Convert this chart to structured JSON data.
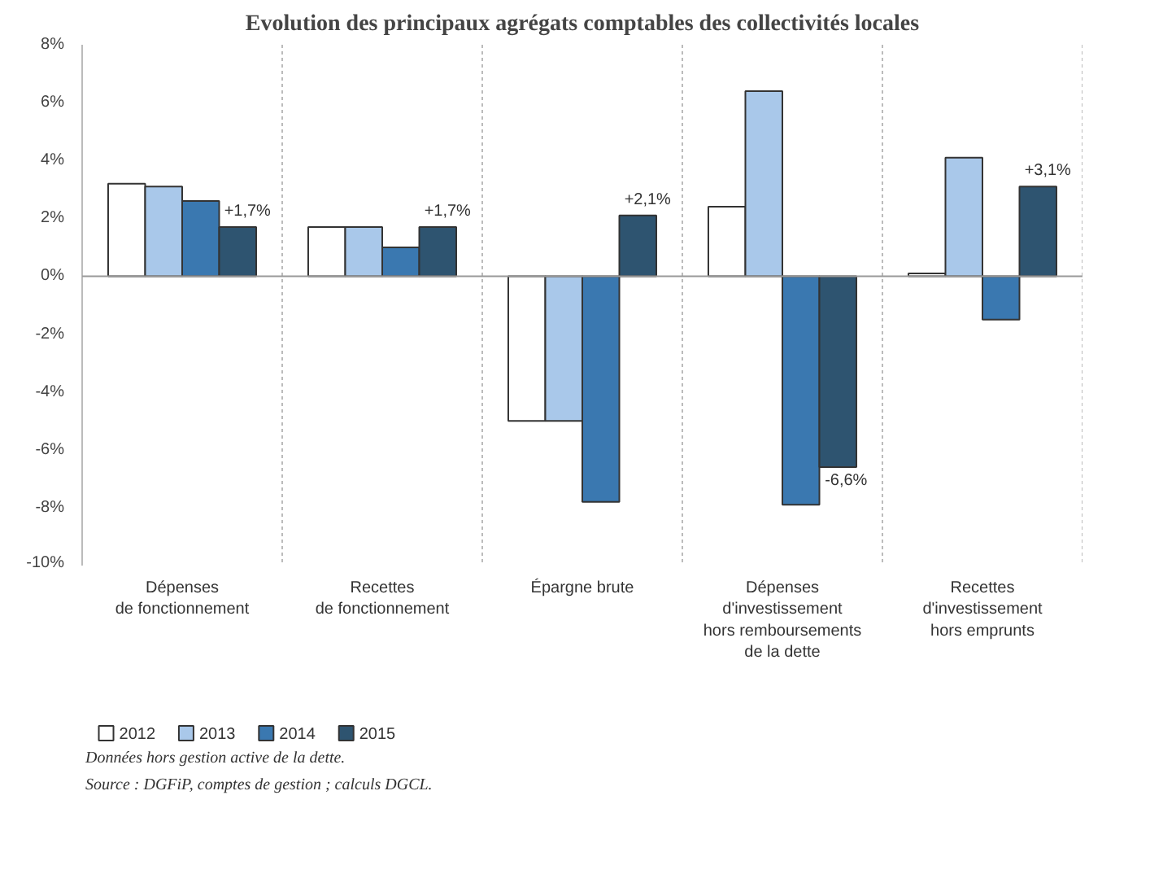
{
  "chart_data": {
    "type": "bar",
    "title": "Evolution des principaux agrégats comptables des collectivités locales",
    "categories": [
      "Dépenses\nde fonctionnement",
      "Recettes\nde fonctionnement",
      "Épargne brute",
      "Dépenses\nd'investissement\nhors remboursements\nde la dette",
      "Recettes\nd'investissement\nhors emprunts"
    ],
    "series": [
      {
        "name": "2012",
        "color": "#ffffff",
        "values": [
          3.2,
          1.7,
          -5.0,
          2.4,
          0.1
        ]
      },
      {
        "name": "2013",
        "color": "#a9c8ea",
        "values": [
          3.1,
          1.7,
          -5.0,
          6.4,
          4.1
        ]
      },
      {
        "name": "2014",
        "color": "#3a78b0",
        "values": [
          2.6,
          1.0,
          -7.8,
          -7.9,
          -1.5
        ]
      },
      {
        "name": "2015",
        "color": "#2e5470",
        "values": [
          1.7,
          1.7,
          2.1,
          -6.6,
          3.1
        ],
        "value_labels": [
          "+1,7%",
          "+1,7%",
          "+2,1%",
          "-6,6%",
          "+3,1%"
        ]
      }
    ],
    "ylim": [
      -10,
      8
    ],
    "yticks": [
      {
        "value": -10,
        "label": "-10%"
      },
      {
        "value": -8,
        "label": "-8%"
      },
      {
        "value": -6,
        "label": "-6%"
      },
      {
        "value": -4,
        "label": "-4%"
      },
      {
        "value": -2,
        "label": "-2%"
      },
      {
        "value": 0,
        "label": "0%"
      },
      {
        "value": 2,
        "label": "2%"
      },
      {
        "value": 4,
        "label": "4%"
      },
      {
        "value": 6,
        "label": "6%"
      },
      {
        "value": 8,
        "label": "8%"
      }
    ],
    "grid": "x",
    "legend": "bottom left",
    "annotations": [
      "Données hors gestion active de la dette.",
      "Source : DGFiP, comptes de gestion ; calculs DGCL."
    ]
  }
}
